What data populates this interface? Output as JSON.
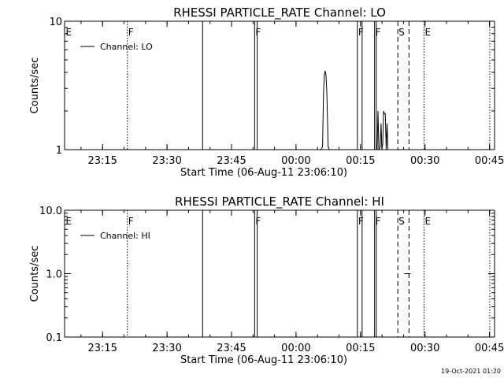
{
  "timestamp": "19-Oct-2021 01:20",
  "chart_data": [
    {
      "type": "line",
      "title": "RHESSI PARTICLE_RATE Channel: LO",
      "xlabel": "Start Time (06-Aug-11 23:06:10)",
      "ylabel": "Counts/sec",
      "x_unit": "minutes after 23:06:10",
      "xlim": [
        0,
        100
      ],
      "x_ticks": [
        {
          "label": "23:15",
          "x": 8.83
        },
        {
          "label": "23:30",
          "x": 23.83
        },
        {
          "label": "23:45",
          "x": 38.83
        },
        {
          "label": "00:00",
          "x": 53.83
        },
        {
          "label": "00:15",
          "x": 68.83
        },
        {
          "label": "00:30",
          "x": 83.83
        },
        {
          "label": "00:45",
          "x": 98.83
        }
      ],
      "y_scale": "log",
      "ylim": [
        1,
        10
      ],
      "y_ticks": [
        {
          "label": "1",
          "value": 1
        },
        {
          "label": "10",
          "value": 10
        }
      ],
      "legend": {
        "position": "top-left",
        "entries": [
          "Channel: LO"
        ]
      },
      "series": [
        {
          "name": "Channel: LO",
          "points": [
            [
              59.6,
              1
            ],
            [
              60.0,
              1.05
            ],
            [
              60.2,
              2.6
            ],
            [
              60.4,
              3.8
            ],
            [
              60.6,
              4.1
            ],
            [
              60.8,
              3.8
            ],
            [
              61.0,
              2.7
            ],
            [
              61.3,
              1.05
            ],
            [
              61.6,
              1
            ],
            [
              72.7,
              1
            ],
            [
              72.9,
              2.0
            ],
            [
              73.1,
              1.0
            ],
            [
              73.4,
              1.05
            ],
            [
              73.6,
              1.6
            ],
            [
              73.8,
              1.0
            ],
            [
              74.0,
              1.1
            ],
            [
              74.2,
              2.0
            ],
            [
              74.4,
              1.9
            ],
            [
              74.6,
              1.9
            ],
            [
              74.8,
              1.0
            ],
            [
              75.0,
              1.6
            ],
            [
              75.2,
              1.0
            ],
            [
              75.4,
              1.0
            ]
          ]
        }
      ],
      "events": [
        {
          "label": "E",
          "x": 0,
          "style": "solid"
        },
        {
          "label": "F",
          "x": 14.6,
          "style": "dotted"
        },
        {
          "label": "",
          "x": 32.1,
          "style": "solid"
        },
        {
          "label": "F",
          "x": 44.2,
          "style": "solid"
        },
        {
          "label": "",
          "x": 44.8,
          "style": "solid"
        },
        {
          "label": "F",
          "x": 68.1,
          "style": "solid"
        },
        {
          "label": "",
          "x": 69.2,
          "style": "solid"
        },
        {
          "label": "F",
          "x": 72.1,
          "style": "solid"
        },
        {
          "label": "",
          "x": 72.5,
          "style": "solid"
        },
        {
          "label": "S",
          "x": 77.5,
          "style": "dashed"
        },
        {
          "label": "",
          "x": 80.1,
          "style": "dashed"
        },
        {
          "label": "E",
          "x": 83.6,
          "style": "dotted"
        },
        {
          "label": "",
          "x": 98.9,
          "style": "dotted"
        }
      ]
    },
    {
      "type": "line",
      "title": "RHESSI PARTICLE_RATE Channel: HI",
      "xlabel": "Start Time (06-Aug-11 23:06:10)",
      "ylabel": "Counts/sec",
      "x_unit": "minutes after 23:06:10",
      "xlim": [
        0,
        100
      ],
      "x_ticks": [
        {
          "label": "23:15",
          "x": 8.83
        },
        {
          "label": "23:30",
          "x": 23.83
        },
        {
          "label": "23:45",
          "x": 38.83
        },
        {
          "label": "00:00",
          "x": 53.83
        },
        {
          "label": "00:15",
          "x": 68.83
        },
        {
          "label": "00:30",
          "x": 83.83
        },
        {
          "label": "00:45",
          "x": 98.83
        }
      ],
      "y_scale": "log",
      "ylim": [
        0.1,
        10
      ],
      "y_ticks": [
        {
          "label": "0.1",
          "value": 0.1
        },
        {
          "label": "1.0",
          "value": 1
        },
        {
          "label": "10.0",
          "value": 10
        }
      ],
      "legend": {
        "position": "top-left",
        "entries": [
          "Channel: HI"
        ]
      },
      "series": [
        {
          "name": "Channel: HI",
          "segments": [
            [
              [
                79.0,
                1.0
              ],
              [
                80.4,
                1.0
              ]
            ],
            [
              [
                102.8,
                1.0
              ],
              [
                104.0,
                1.0
              ]
            ]
          ]
        }
      ],
      "events": [
        {
          "label": "E",
          "x": 0,
          "style": "solid"
        },
        {
          "label": "F",
          "x": 14.6,
          "style": "dotted"
        },
        {
          "label": "",
          "x": 32.1,
          "style": "solid"
        },
        {
          "label": "F",
          "x": 44.2,
          "style": "solid"
        },
        {
          "label": "",
          "x": 44.8,
          "style": "solid"
        },
        {
          "label": "F",
          "x": 68.1,
          "style": "solid"
        },
        {
          "label": "",
          "x": 69.2,
          "style": "solid"
        },
        {
          "label": "F",
          "x": 72.1,
          "style": "solid"
        },
        {
          "label": "",
          "x": 72.5,
          "style": "solid"
        },
        {
          "label": "S",
          "x": 77.5,
          "style": "dashed"
        },
        {
          "label": "",
          "x": 80.1,
          "style": "dashed"
        },
        {
          "label": "E",
          "x": 83.6,
          "style": "dotted"
        },
        {
          "label": "",
          "x": 98.9,
          "style": "dotted"
        }
      ]
    }
  ]
}
